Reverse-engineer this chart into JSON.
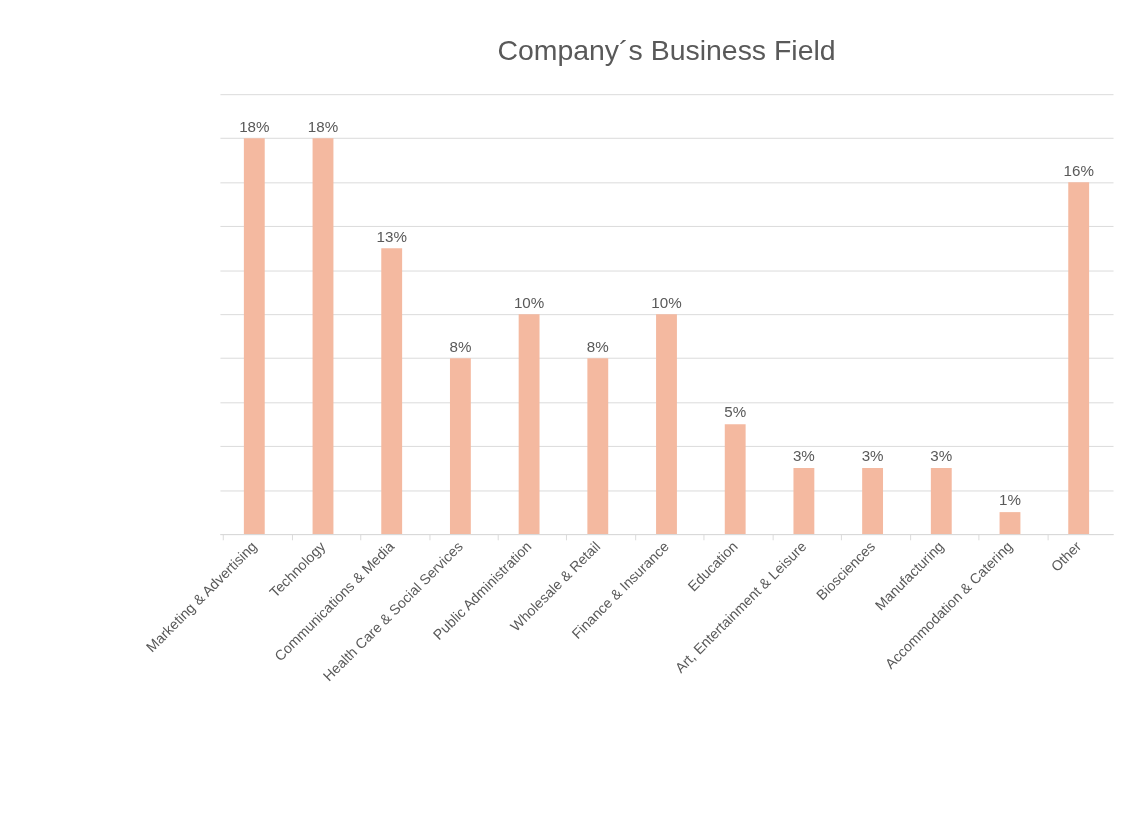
{
  "chart_data": {
    "type": "bar",
    "title": "Company´s Business Field",
    "categories": [
      "Marketing & Advertising",
      "Technology",
      "Communications & Media",
      "Health Care & Social Services",
      "Public Administration",
      "Wholesale & Retail",
      "Finance & Insurance",
      "Education",
      "Art, Entertainment & Leisure",
      "Biosciences",
      "Manufacturing",
      "Accommodation & Catering",
      "Other"
    ],
    "values": [
      18,
      18,
      13,
      8,
      10,
      8,
      10,
      5,
      3,
      3,
      3,
      1,
      16
    ],
    "value_labels": [
      "18%",
      "18%",
      "13%",
      "8%",
      "10%",
      "8%",
      "10%",
      "5%",
      "3%",
      "3%",
      "3%",
      "1%",
      "16%"
    ],
    "color": "#f4b9a0",
    "ylim": [
      0,
      20
    ],
    "yticks": [
      {
        "value": 0,
        "label": null
      },
      {
        "value": 2,
        "label": null
      },
      {
        "value": 4,
        "label": null
      },
      {
        "value": 6,
        "label": null
      },
      {
        "value": 8,
        "label": null
      },
      {
        "value": 10,
        "label": null
      },
      {
        "value": 12,
        "label": null
      },
      {
        "value": 14,
        "label": null
      },
      {
        "value": 16,
        "label": null
      },
      {
        "value": 18,
        "label": null
      },
      {
        "value": 20,
        "label": null
      }
    ],
    "grid": "y",
    "tick_labels": "x"
  }
}
